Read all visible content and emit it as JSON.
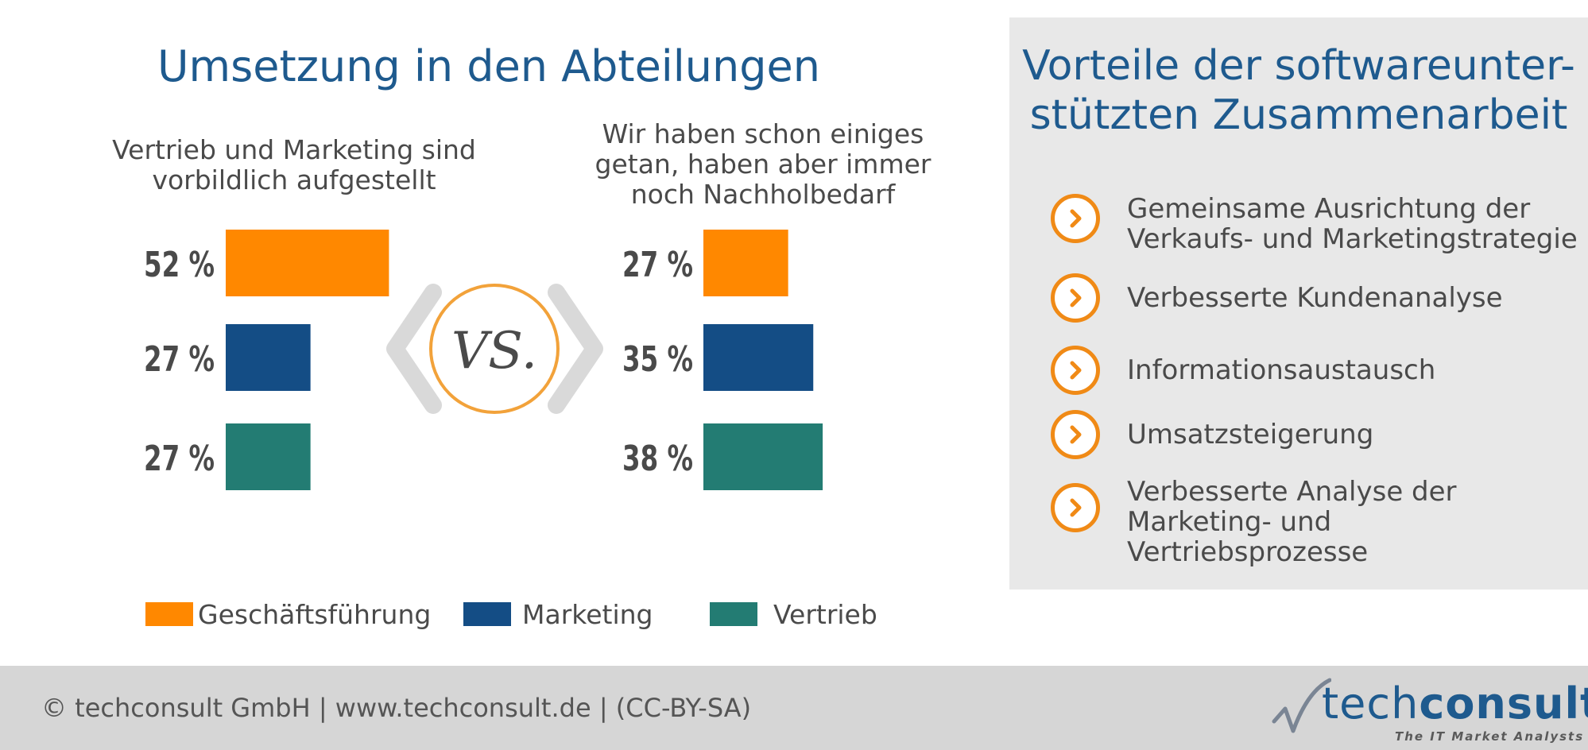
{
  "title": "Umsetzung in den Abteilungen",
  "panel": {
    "title": "Vorteile der softwareunter-\nstützten Zusammenarbeit",
    "items": [
      "Gemeinsame Ausrichtung der\nVerkaufs- und Marketingstrategie",
      "Verbesserte Kundenanalyse",
      "Informationsaustausch",
      "Umsatzsteigerung",
      "Verbesserte Analyse der\nMarketing- und Vertriebsprozesse"
    ]
  },
  "vs_label": "VS.",
  "colors": {
    "orange": "#ff8800",
    "blue": "#144d85",
    "teal": "#237c73",
    "accent": "#f08a16"
  },
  "icons": {
    "bullet": "chevron-right-circle-icon",
    "logo": "checkmark-swoosh-icon"
  },
  "chart_data": [
    {
      "type": "bar",
      "title": "Vertrieb und Marketing sind\nvorbildlich aufgestellt",
      "categories": [
        "Geschäftsführung",
        "Marketing",
        "Vertrieb"
      ],
      "values": [
        52,
        27,
        27
      ],
      "labels": [
        "52 %",
        "27 %",
        "27 %"
      ],
      "xlim": [
        0,
        100
      ]
    },
    {
      "type": "bar",
      "title": "Wir haben schon einiges\ngetan, haben aber immer\nnoch Nachholbedarf",
      "categories": [
        "Geschäftsführung",
        "Marketing",
        "Vertrieb"
      ],
      "values": [
        27,
        35,
        38
      ],
      "labels": [
        "27 %",
        "35 %",
        "38 %"
      ],
      "xlim": [
        0,
        100
      ]
    }
  ],
  "legend": [
    {
      "label": "Geschäftsführung",
      "color": "#ff8800"
    },
    {
      "label": "Marketing",
      "color": "#144d85"
    },
    {
      "label": "Vertrieb",
      "color": "#237c73"
    }
  ],
  "footer": {
    "text": "© techconsult GmbH  |  www.techconsult.de  |  (CC-BY-SA)",
    "logo_light": "tech",
    "logo_bold": "consult",
    "tagline": "The IT Market Analysts"
  }
}
